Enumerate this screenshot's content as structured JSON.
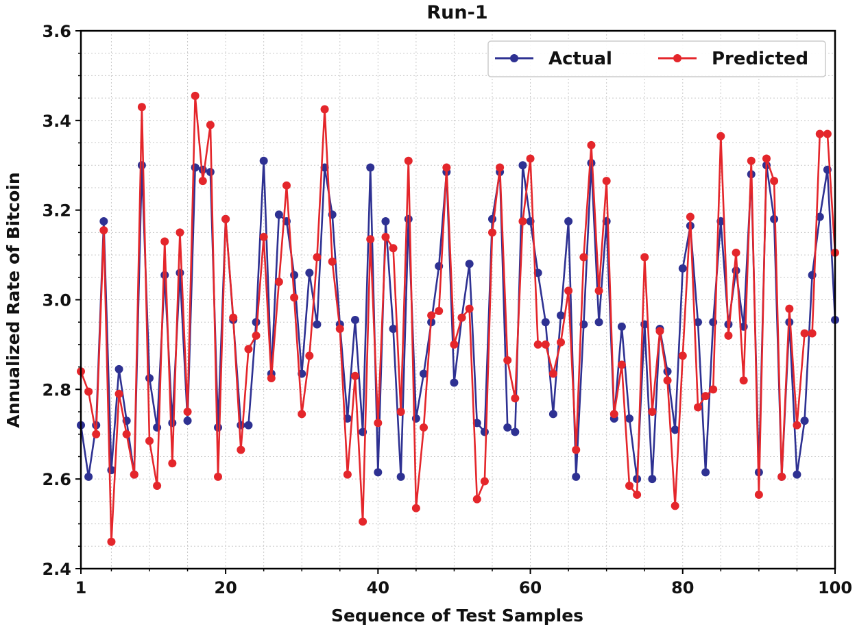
{
  "chart_data": {
    "type": "line",
    "title": "Run-1",
    "xlabel": "Sequence of Test Samples",
    "ylabel": "Annualized Rate of Bitcoin",
    "xlim": [
      1,
      100
    ],
    "ylim": [
      2.4,
      3.6
    ],
    "xticks": [
      1,
      20,
      40,
      60,
      80,
      100
    ],
    "xtick_labels": [
      "1",
      "20",
      "40",
      "60",
      "80",
      "100"
    ],
    "yticks": [
      2.4,
      2.6,
      2.8,
      3.0,
      3.2,
      3.4,
      3.6
    ],
    "ytick_labels": [
      "2.4",
      "2.6",
      "2.8",
      "3.0",
      "3.2",
      "3.4",
      "3.6"
    ],
    "grid": true,
    "legend_position": "top-right",
    "series": [
      {
        "name": "Actual",
        "color": "#2e3192",
        "values": [
          2.72,
          2.605,
          2.72,
          3.175,
          2.62,
          2.845,
          2.73,
          2.61,
          3.3,
          2.825,
          2.715,
          3.055,
          2.725,
          3.06,
          2.73,
          3.295,
          3.29,
          3.285,
          2.715,
          3.18,
          2.955,
          2.72,
          2.72,
          2.95,
          3.31,
          2.835,
          3.19,
          3.175,
          3.055,
          2.835,
          3.06,
          2.945,
          3.295,
          3.19,
          2.945,
          2.735,
          2.955,
          2.705,
          3.295,
          2.615,
          3.175,
          2.935,
          2.605,
          3.18,
          2.735,
          2.835,
          2.95,
          3.075,
          3.285,
          2.815,
          2.96,
          3.08,
          2.725,
          2.705,
          3.18,
          3.285,
          2.715,
          2.705,
          3.3,
          3.175,
          3.06,
          2.95,
          2.745,
          2.965,
          3.175,
          2.605,
          2.945,
          3.305,
          2.95,
          3.175,
          2.735,
          2.94,
          2.735,
          2.6,
          2.945,
          2.6,
          2.935,
          2.84,
          2.71,
          3.07,
          3.165,
          2.95,
          2.615,
          2.95,
          3.175,
          2.945,
          3.065,
          2.94,
          3.28,
          2.615,
          3.3,
          3.18,
          2.605,
          2.95,
          2.61,
          2.73,
          3.055,
          3.185,
          3.29,
          2.955
        ]
      },
      {
        "name": "Predicted",
        "color": "#e4262b",
        "values": [
          2.84,
          2.795,
          2.7,
          3.155,
          2.46,
          2.79,
          2.7,
          2.61,
          3.43,
          2.685,
          2.585,
          3.13,
          2.635,
          3.15,
          2.75,
          3.455,
          3.265,
          3.39,
          2.605,
          3.18,
          2.96,
          2.665,
          2.89,
          2.92,
          3.14,
          2.825,
          3.04,
          3.255,
          3.005,
          2.745,
          2.875,
          3.095,
          3.425,
          3.085,
          2.935,
          2.61,
          2.83,
          2.505,
          3.135,
          2.725,
          3.14,
          3.115,
          2.75,
          3.31,
          2.535,
          2.715,
          2.965,
          2.975,
          3.295,
          2.9,
          2.96,
          2.98,
          2.555,
          2.595,
          3.15,
          3.295,
          2.865,
          2.78,
          3.175,
          3.315,
          2.9,
          2.9,
          2.835,
          2.905,
          3.02,
          2.665,
          3.095,
          3.345,
          3.02,
          3.265,
          2.745,
          2.855,
          2.585,
          2.565,
          3.095,
          2.75,
          2.93,
          2.82,
          2.54,
          2.875,
          3.185,
          2.76,
          2.785,
          2.8,
          3.365,
          2.92,
          3.105,
          2.82,
          3.31,
          2.565,
          3.315,
          3.265,
          2.605,
          2.98,
          2.72,
          2.925,
          2.925,
          3.37,
          3.37,
          3.105
        ]
      }
    ]
  }
}
